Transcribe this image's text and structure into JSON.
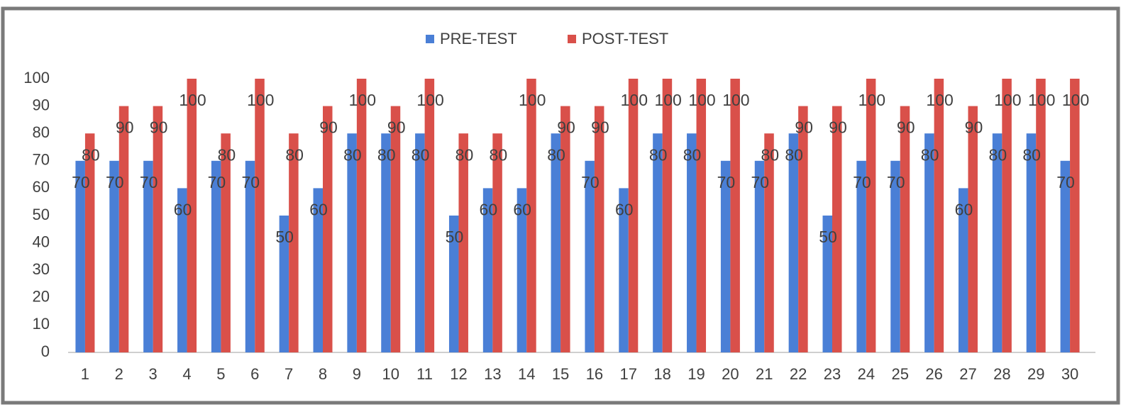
{
  "chart_data": {
    "type": "bar",
    "categories": [
      "1",
      "2",
      "3",
      "4",
      "5",
      "6",
      "7",
      "8",
      "9",
      "10",
      "11",
      "12",
      "13",
      "14",
      "15",
      "16",
      "17",
      "18",
      "19",
      "20",
      "21",
      "22",
      "23",
      "24",
      "25",
      "26",
      "27",
      "28",
      "29",
      "30"
    ],
    "series": [
      {
        "name": "PRE-TEST",
        "color": "#4a7fd6",
        "values": [
          70,
          70,
          70,
          60,
          70,
          70,
          50,
          60,
          80,
          80,
          80,
          50,
          60,
          60,
          80,
          70,
          60,
          80,
          80,
          70,
          70,
          80,
          50,
          70,
          70,
          80,
          60,
          80,
          80,
          70
        ]
      },
      {
        "name": "POST-TEST",
        "color": "#d9504a",
        "values": [
          80,
          90,
          90,
          100,
          80,
          100,
          80,
          90,
          100,
          90,
          100,
          80,
          80,
          100,
          90,
          90,
          100,
          100,
          100,
          100,
          80,
          90,
          90,
          100,
          90,
          100,
          90,
          100,
          100,
          100
        ]
      }
    ],
    "ylim": [
      0,
      100
    ],
    "yticks": [
      0,
      10,
      20,
      30,
      40,
      50,
      60,
      70,
      80,
      90,
      100
    ],
    "legend": "top",
    "data_labels": true
  }
}
